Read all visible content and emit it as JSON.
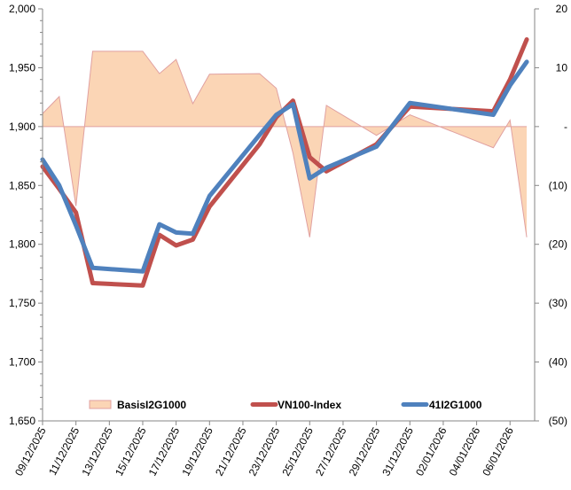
{
  "chart_data": {
    "type": "line",
    "title": "",
    "dates": [
      "09/12/2025",
      "10/12/2025",
      "11/12/2025",
      "12/12/2025",
      "15/12/2025",
      "16/12/2025",
      "17/12/2025",
      "18/12/2025",
      "19/12/2025",
      "22/12/2025",
      "23/12/2025",
      "24/12/2025",
      "25/12/2025",
      "26/12/2025",
      "29/12/2025",
      "31/12/2025",
      "05/01/2026",
      "06/01/2026",
      "07/01/2026"
    ],
    "day_offsets": [
      0,
      1,
      2,
      3,
      6,
      7,
      8,
      9,
      10,
      13,
      14,
      15,
      16,
      17,
      20,
      22,
      27,
      28,
      29
    ],
    "series": [
      {
        "name": "BasisI2G1000",
        "type": "area",
        "axis": "right",
        "color": "#FBD5B5",
        "stroke": "#E0A0A0",
        "values": [
          2.2,
          5.1,
          -13.5,
          12.8,
          12.8,
          9.0,
          11.4,
          3.9,
          8.9,
          9.0,
          6.5,
          -4.5,
          -18.8,
          3.6,
          -1.5,
          2.0,
          -3.6,
          1.1,
          -18.8
        ]
      },
      {
        "name": "VN100-Index",
        "type": "line",
        "axis": "left",
        "color": "#C0504D",
        "values": [
          1866,
          1847,
          1827,
          1767,
          1765,
          1808,
          1799,
          1804,
          1832,
          1885,
          1908,
          1922,
          1874,
          1862,
          1885,
          1917,
          1913,
          1940,
          1974
        ]
      },
      {
        "name": "41I2G1000",
        "type": "line",
        "axis": "left",
        "color": "#4F81BD",
        "values": [
          1872,
          1850,
          1816,
          1780,
          1777,
          1817,
          1810,
          1809,
          1841,
          1893,
          1910,
          1919,
          1856,
          1865,
          1883,
          1920,
          1910,
          1935,
          1955
        ]
      }
    ],
    "x_tick_labels": [
      "09/12/2025",
      "11/12/2025",
      "13/12/2025",
      "15/12/2025",
      "17/12/2025",
      "19/12/2025",
      "21/12/2025",
      "23/12/2025",
      "25/12/2025",
      "27/12/2025",
      "29/12/2025",
      "31/12/2025",
      "02/01/2026",
      "04/01/2026",
      "06/01/2026"
    ],
    "left_axis": {
      "ylim": [
        1650,
        2000
      ],
      "tick_labels": [
        "1,650",
        "1,700",
        "1,750",
        "1,800",
        "1,850",
        "1,900",
        "1,950",
        "2,000"
      ],
      "tick_values": [
        1650,
        1700,
        1750,
        1800,
        1850,
        1900,
        1950,
        2000
      ]
    },
    "right_axis": {
      "ylim": [
        -50,
        20
      ],
      "tick_labels": [
        "(50)",
        "(40)",
        "(30)",
        "(20)",
        "(10)",
        "-",
        "10",
        "20"
      ],
      "tick_values": [
        -50,
        -40,
        -30,
        -20,
        -10,
        0,
        10,
        20
      ]
    },
    "legend": {
      "placement": "bottom-inside",
      "entries": [
        "BasisI2G1000",
        "VN100-Index",
        "41I2G1000"
      ]
    },
    "grid": false
  }
}
